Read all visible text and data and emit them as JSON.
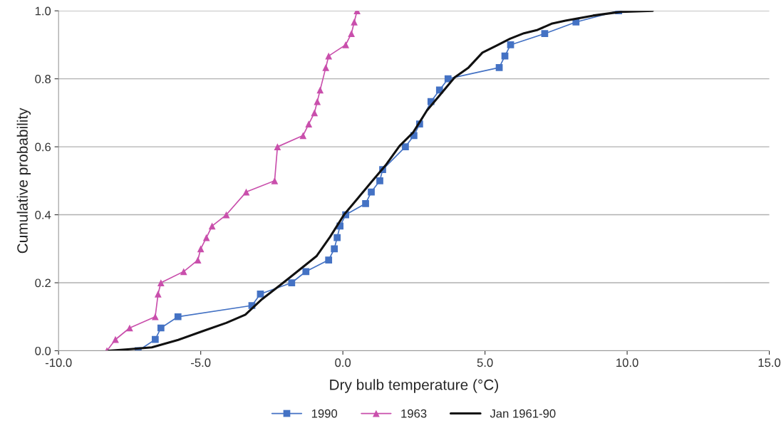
{
  "chart_data": {
    "type": "line",
    "xlabel": "Dry bulb temperature (°C)",
    "ylabel": "Cumulative probability",
    "xlim": [
      -10,
      15
    ],
    "ylim": [
      0,
      1
    ],
    "xticks": [
      {
        "value": -10,
        "label": "-10.0"
      },
      {
        "value": -5,
        "label": "-5.0"
      },
      {
        "value": 0,
        "label": "0.0"
      },
      {
        "value": 5,
        "label": "5.0"
      },
      {
        "value": 10,
        "label": "10.0"
      },
      {
        "value": 15,
        "label": "15.0"
      }
    ],
    "yticks": [
      {
        "value": 0,
        "label": "0.0"
      },
      {
        "value": 0.2,
        "label": "0.2"
      },
      {
        "value": 0.4,
        "label": "0.4"
      },
      {
        "value": 0.6,
        "label": "0.6"
      },
      {
        "value": 0.8,
        "label": "0.8"
      },
      {
        "value": 1,
        "label": "1.0"
      }
    ],
    "grid": "y",
    "legend": "bottom",
    "series": [
      {
        "name": "1990",
        "color": "#4472c4",
        "marker": "square",
        "x": [
          -7.2,
          -6.6,
          -6.4,
          -5.8,
          -3.2,
          -2.9,
          -1.8,
          -1.3,
          -0.5,
          -0.3,
          -0.2,
          -0.1,
          0.1,
          0.8,
          1.0,
          1.3,
          1.4,
          2.2,
          2.5,
          2.7,
          3.1,
          3.4,
          3.7,
          5.5,
          5.7,
          5.9,
          7.1,
          8.2,
          9.7
        ],
        "values": [
          0,
          0.033,
          0.067,
          0.1,
          0.133,
          0.167,
          0.2,
          0.233,
          0.267,
          0.3,
          0.333,
          0.367,
          0.4,
          0.433,
          0.467,
          0.5,
          0.533,
          0.6,
          0.633,
          0.667,
          0.733,
          0.767,
          0.8,
          0.833,
          0.867,
          0.9,
          0.933,
          0.967,
          1.0
        ]
      },
      {
        "name": "1963",
        "color": "#c94fac",
        "marker": "triangle",
        "x": [
          -8.3,
          -8.0,
          -7.5,
          -6.6,
          -6.5,
          -6.4,
          -5.6,
          -5.1,
          -5.0,
          -4.8,
          -4.6,
          -4.1,
          -3.4,
          -2.4,
          -2.3,
          -1.4,
          -1.2,
          -1.0,
          -0.9,
          -0.8,
          -0.6,
          -0.5,
          0.1,
          0.3,
          0.4,
          0.5
        ],
        "values": [
          0,
          0.033,
          0.067,
          0.1,
          0.167,
          0.2,
          0.233,
          0.267,
          0.3,
          0.333,
          0.367,
          0.4,
          0.467,
          0.5,
          0.6,
          0.633,
          0.667,
          0.7,
          0.733,
          0.767,
          0.833,
          0.867,
          0.9,
          0.933,
          0.967,
          1.0
        ]
      },
      {
        "name": "Jan 1961-90",
        "color": "#111111",
        "marker": "none",
        "x": [
          -8.24,
          -7.56,
          -6.72,
          -5.79,
          -4.95,
          -4.1,
          -3.43,
          -2.84,
          -2.25,
          -1.9,
          -0.93,
          -0.45,
          0.04,
          0.53,
          1.01,
          1.5,
          1.99,
          2.47,
          2.96,
          3.45,
          3.93,
          4.42,
          4.91,
          5.39,
          5.88,
          6.37,
          6.85,
          7.34,
          7.83,
          8.8,
          9.77,
          10.9
        ],
        "values": [
          0,
          0.004,
          0.01,
          0.032,
          0.057,
          0.082,
          0.106,
          0.152,
          0.19,
          0.213,
          0.278,
          0.335,
          0.4,
          0.449,
          0.497,
          0.545,
          0.602,
          0.642,
          0.707,
          0.756,
          0.804,
          0.833,
          0.877,
          0.897,
          0.918,
          0.934,
          0.944,
          0.962,
          0.971,
          0.986,
          0.997,
          1.0
        ]
      }
    ]
  }
}
